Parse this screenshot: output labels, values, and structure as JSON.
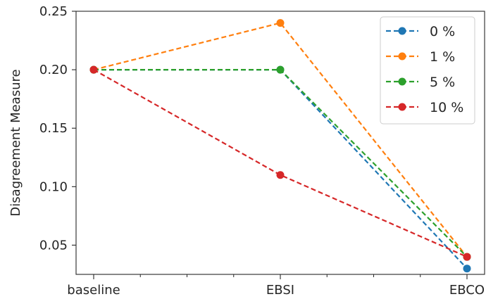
{
  "chart_data": {
    "type": "line",
    "title": "",
    "xlabel": "",
    "ylabel": "Disagreement Measure",
    "categories": [
      "baseline",
      "EBSI",
      "EBCO"
    ],
    "ylim": [
      0.025,
      0.25
    ],
    "yticks": [
      "0.05",
      "0.10",
      "0.15",
      "0.20",
      "0.25"
    ],
    "grid": false,
    "legend_position": "top-right",
    "line_style": "dashed",
    "series": [
      {
        "name": "0 %",
        "color": "#1f77b4",
        "values": [
          0.2,
          0.2,
          0.03
        ]
      },
      {
        "name": "1 %",
        "color": "#ff7f0e",
        "values": [
          0.2,
          0.24,
          0.04
        ]
      },
      {
        "name": "5 %",
        "color": "#2ca02c",
        "values": [
          0.2,
          0.2,
          0.04
        ]
      },
      {
        "name": "10 %",
        "color": "#d62728",
        "values": [
          0.2,
          0.11,
          0.04
        ]
      }
    ]
  }
}
